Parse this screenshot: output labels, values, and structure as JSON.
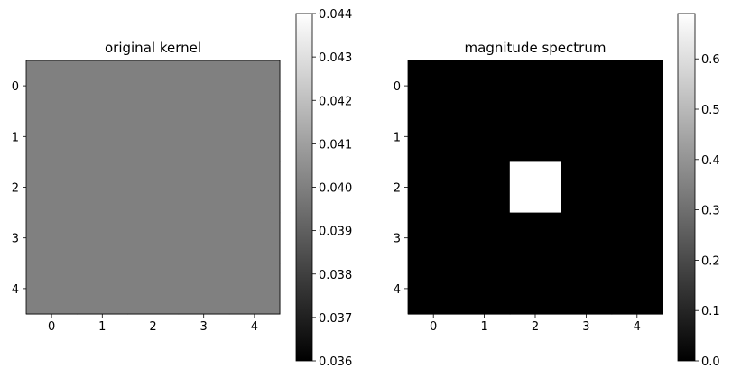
{
  "chart_data": [
    {
      "type": "heatmap",
      "title": "original kernel",
      "colormap": "gray",
      "rows": 5,
      "cols": 5,
      "x_ticks": [
        "0",
        "1",
        "2",
        "3",
        "4"
      ],
      "y_ticks": [
        "0",
        "1",
        "2",
        "3",
        "4"
      ],
      "values": [
        [
          0.04,
          0.04,
          0.04,
          0.04,
          0.04
        ],
        [
          0.04,
          0.04,
          0.04,
          0.04,
          0.04
        ],
        [
          0.04,
          0.04,
          0.04,
          0.04,
          0.04
        ],
        [
          0.04,
          0.04,
          0.04,
          0.04,
          0.04
        ],
        [
          0.04,
          0.04,
          0.04,
          0.04,
          0.04
        ]
      ],
      "colorbar": {
        "vmin": 0.036,
        "vmax": 0.044,
        "ticks": [
          0.036,
          0.037,
          0.038,
          0.039,
          0.04,
          0.041,
          0.042,
          0.043,
          0.044
        ],
        "tick_labels": [
          "0.036",
          "0.037",
          "0.038",
          "0.039",
          "0.040",
          "0.041",
          "0.042",
          "0.043",
          "0.044"
        ]
      }
    },
    {
      "type": "heatmap",
      "title": "magnitude spectrum",
      "colormap": "gray",
      "rows": 5,
      "cols": 5,
      "x_ticks": [
        "0",
        "1",
        "2",
        "3",
        "4"
      ],
      "y_ticks": [
        "0",
        "1",
        "2",
        "3",
        "4"
      ],
      "values": [
        [
          0,
          0,
          0,
          0,
          0
        ],
        [
          0,
          0,
          0,
          0,
          0
        ],
        [
          0,
          0,
          0.69,
          0,
          0
        ],
        [
          0,
          0,
          0,
          0,
          0
        ],
        [
          0,
          0,
          0,
          0,
          0
        ]
      ],
      "colorbar": {
        "vmin": 0.0,
        "vmax": 0.69,
        "ticks": [
          0.0,
          0.1,
          0.2,
          0.3,
          0.4,
          0.5,
          0.6
        ],
        "tick_labels": [
          "0.0",
          "0.1",
          "0.2",
          "0.3",
          "0.4",
          "0.5",
          "0.6"
        ]
      }
    }
  ]
}
